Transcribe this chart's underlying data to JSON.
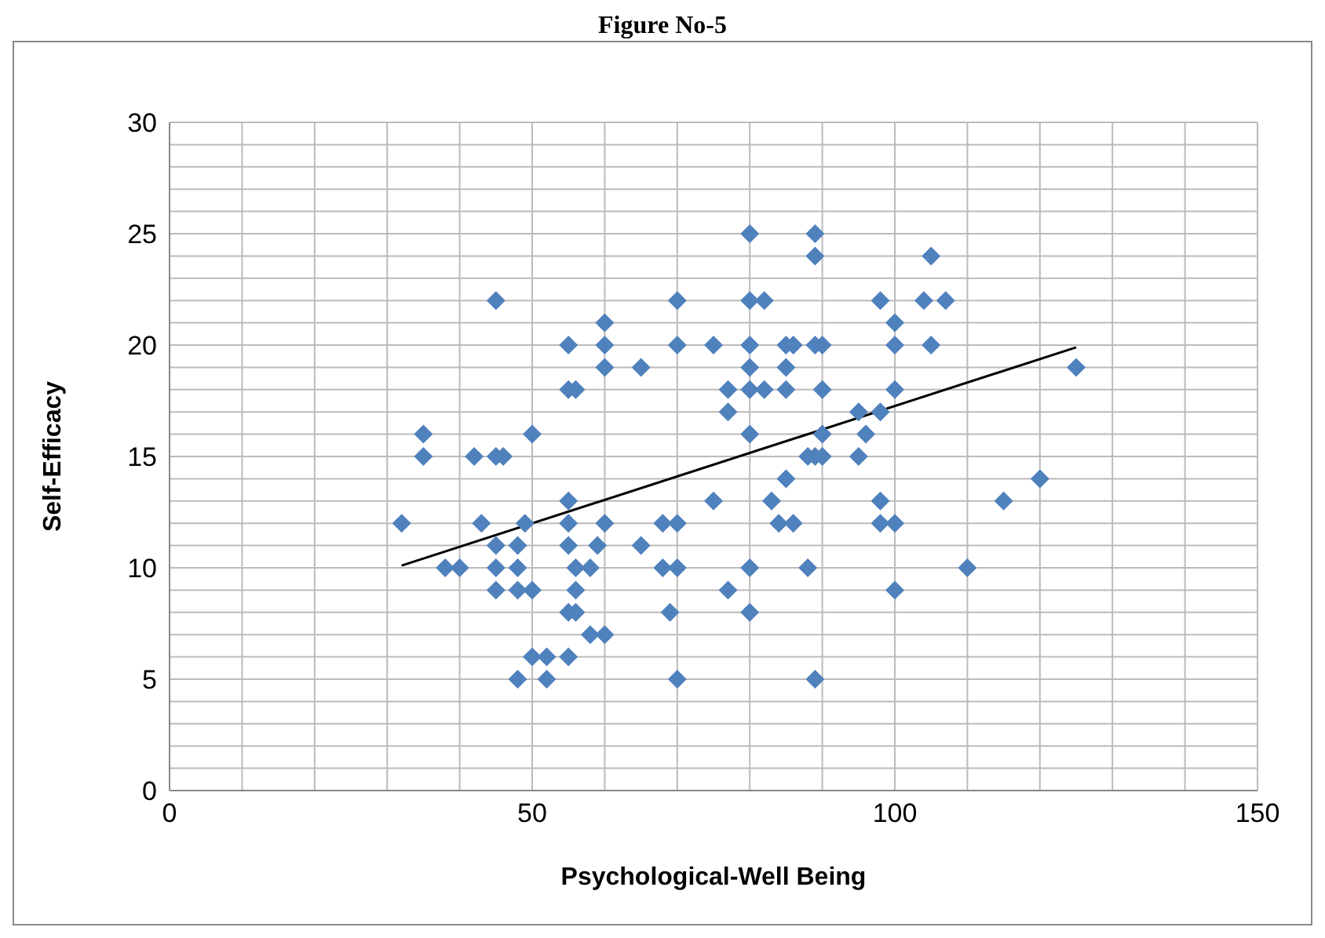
{
  "chart_data": {
    "type": "scatter",
    "title": "Figure No-5",
    "xlabel": "Psychological-Well Being",
    "ylabel": "Self-Efficacy",
    "xlim": [
      0,
      150
    ],
    "xticks": [
      0,
      {
        "value": 10,
        "label": null
      },
      {
        "value": 20,
        "label": null
      },
      {
        "value": 30,
        "label": null
      },
      {
        "value": 40,
        "label": null
      },
      50,
      {
        "value": 60,
        "label": null
      },
      {
        "value": 70,
        "label": null
      },
      {
        "value": 80,
        "label": null
      },
      {
        "value": 90,
        "label": null
      },
      100,
      {
        "value": 110,
        "label": null
      },
      {
        "value": 120,
        "label": null
      },
      {
        "value": 130,
        "label": null
      },
      {
        "value": 140,
        "label": null
      },
      150
    ],
    "ylim": [
      0,
      30
    ],
    "yticks": [
      0,
      {
        "value": 1,
        "label": null
      },
      {
        "value": 2,
        "label": null
      },
      {
        "value": 3,
        "label": null
      },
      {
        "value": 4,
        "label": null
      },
      5,
      {
        "value": 6,
        "label": null
      },
      {
        "value": 7,
        "label": null
      },
      {
        "value": 8,
        "label": null
      },
      {
        "value": 9,
        "label": null
      },
      10,
      {
        "value": 11,
        "label": null
      },
      {
        "value": 12,
        "label": null
      },
      {
        "value": 13,
        "label": null
      },
      {
        "value": 14,
        "label": null
      },
      15,
      {
        "value": 16,
        "label": null
      },
      {
        "value": 17,
        "label": null
      },
      {
        "value": 18,
        "label": null
      },
      {
        "value": 19,
        "label": null
      },
      20,
      {
        "value": 21,
        "label": null
      },
      {
        "value": 22,
        "label": null
      },
      {
        "value": 23,
        "label": null
      },
      {
        "value": 24,
        "label": null
      },
      25,
      {
        "value": 26,
        "label": null
      },
      {
        "value": 27,
        "label": null
      },
      {
        "value": 28,
        "label": null
      },
      {
        "value": 29,
        "label": null
      },
      30
    ],
    "grid": true,
    "legend": false,
    "series": [
      {
        "color": "#4f81bd",
        "marker": "diamond",
        "x": [
          32,
          35,
          35,
          38,
          40,
          42,
          43,
          45,
          45,
          45,
          45,
          45,
          46,
          48,
          48,
          48,
          48,
          49,
          50,
          50,
          50,
          52,
          52,
          55,
          55,
          55,
          55,
          55,
          55,
          55,
          56,
          56,
          56,
          56,
          58,
          58,
          59,
          60,
          60,
          60,
          60,
          60,
          65,
          65,
          68,
          68,
          69,
          70,
          70,
          70,
          70,
          70,
          75,
          75,
          77,
          77,
          77,
          80,
          80,
          80,
          80,
          80,
          80,
          80,
          80,
          82,
          82,
          83,
          84,
          85,
          85,
          85,
          85,
          86,
          86,
          88,
          88,
          89,
          89,
          89,
          89,
          89,
          90,
          90,
          90,
          90,
          95,
          95,
          96,
          98,
          98,
          98,
          98,
          100,
          100,
          100,
          100,
          100,
          104,
          105,
          105,
          107,
          110,
          115,
          120,
          125
        ],
        "values": [
          12,
          16,
          15,
          10,
          10,
          15,
          12,
          22,
          15,
          11,
          10,
          9,
          15,
          11,
          10,
          9,
          5,
          12,
          16,
          9,
          6,
          6,
          5,
          20,
          18,
          13,
          12,
          11,
          8,
          6,
          18,
          10,
          9,
          8,
          10,
          7,
          11,
          21,
          20,
          19,
          12,
          7,
          19,
          11,
          12,
          10,
          8,
          22,
          20,
          12,
          10,
          5,
          20,
          13,
          18,
          17,
          9,
          25,
          22,
          20,
          19,
          18,
          16,
          10,
          8,
          22,
          18,
          13,
          12,
          20,
          19,
          18,
          14,
          20,
          12,
          15,
          10,
          25,
          24,
          20,
          15,
          5,
          20,
          18,
          16,
          15,
          17,
          15,
          16,
          22,
          17,
          13,
          12,
          21,
          20,
          18,
          12,
          9,
          22,
          24,
          20,
          22,
          10,
          13,
          14,
          19
        ]
      },
      {
        "type": "line",
        "color": "#000000",
        "marker": "none",
        "line_style": "solid",
        "x": [
          32,
          125
        ],
        "values": [
          10.1,
          19.9
        ]
      }
    ]
  }
}
